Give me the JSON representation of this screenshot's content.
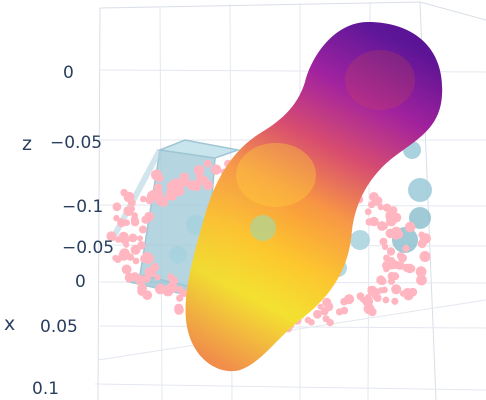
{
  "chart_data": {
    "type": "scatter3d",
    "axes": {
      "z": {
        "title": "z",
        "ticks": [
          "0",
          "−0.05",
          "−0.1"
        ]
      },
      "x": {
        "title": "x",
        "ticks": [
          "−0.05",
          "0",
          "0.05",
          "0.1"
        ]
      }
    },
    "grid": true,
    "legend": "none",
    "series": [
      {
        "marker_color": "#ffb6c1",
        "shape": "ring of points around the surface"
      },
      {
        "marker_color": "#add8e6",
        "shape": "translucent box and spheres"
      },
      {
        "colorscale": "plasma",
        "shape": "dense surface of points forming two joined lobes"
      }
    ],
    "colors": {
      "pink": "#ffb6c1",
      "light_blue": "#add8e6",
      "plasma_dark": "#5c0f9a",
      "plasma_mid": "#d6446a",
      "plasma_orange": "#f89540",
      "plasma_yellow": "#f0f921",
      "grid": "#d9dee8",
      "tick_text": "#2a3f5f"
    }
  }
}
